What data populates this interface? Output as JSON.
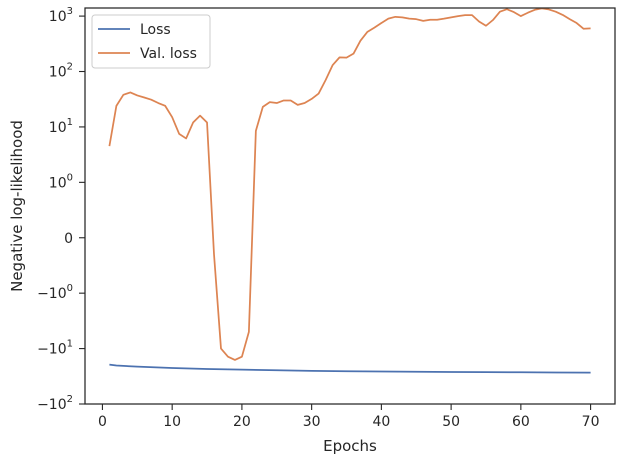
{
  "chart_data": {
    "type": "line",
    "title": "",
    "xlabel": "Epochs",
    "ylabel": "Negative log-likelihood",
    "y_scale": "symlog",
    "xlim": [
      -2.5,
      73.5
    ],
    "ylim": [
      -100,
      1400
    ],
    "x_ticks": [
      0,
      10,
      20,
      30,
      40,
      50,
      60,
      70
    ],
    "y_ticks": [
      {
        "value": 1000,
        "base": "10",
        "exp": "3"
      },
      {
        "value": 100,
        "base": "10",
        "exp": "2"
      },
      {
        "value": 10,
        "base": "10",
        "exp": "1"
      },
      {
        "value": 1,
        "base": "10",
        "exp": "0"
      },
      {
        "value": 0,
        "base": "0",
        "exp": ""
      },
      {
        "value": -1,
        "base": "−10",
        "exp": "0"
      },
      {
        "value": -10,
        "base": "−10",
        "exp": "1"
      },
      {
        "value": -100,
        "base": "−10",
        "exp": "2"
      }
    ],
    "grid": false,
    "legend_position": "top-left",
    "series": [
      {
        "name": "Loss",
        "color": "#4c72b0",
        "x": [
          1,
          2,
          5,
          10,
          15,
          20,
          25,
          30,
          35,
          40,
          45,
          50,
          55,
          60,
          65,
          70
        ],
        "y": [
          -19.5,
          -20.2,
          -21.2,
          -22.4,
          -23.3,
          -24.0,
          -24.6,
          -25.2,
          -25.6,
          -25.9,
          -26.2,
          -26.4,
          -26.6,
          -26.8,
          -27.0,
          -27.2
        ]
      },
      {
        "name": "Val. loss",
        "color": "#dd8452",
        "x": [
          1,
          2,
          3,
          4,
          5,
          6,
          7,
          8,
          9,
          10,
          11,
          12,
          13,
          14,
          15,
          16,
          17,
          18,
          19,
          20,
          21,
          22,
          23,
          24,
          25,
          26,
          27,
          28,
          29,
          30,
          31,
          32,
          33,
          34,
          35,
          36,
          37,
          38,
          39,
          40,
          41,
          42,
          43,
          44,
          45,
          46,
          47,
          48,
          49,
          50,
          51,
          52,
          53,
          54,
          55,
          56,
          57,
          58,
          59,
          60,
          61,
          62,
          63,
          64,
          65,
          66,
          67,
          68,
          69,
          70
        ],
        "y": [
          4.5,
          24,
          38,
          42,
          37,
          34,
          31,
          27,
          24,
          15,
          7.5,
          6.2,
          12,
          16,
          12,
          -0.3,
          -10,
          -14,
          -16,
          -14,
          -5,
          8.5,
          23,
          28,
          27,
          30,
          30,
          25,
          27,
          32,
          40,
          70,
          130,
          180,
          178,
          210,
          360,
          520,
          620,
          750,
          900,
          970,
          950,
          900,
          880,
          820,
          860,
          860,
          900,
          950,
          1000,
          1040,
          1040,
          800,
          670,
          850,
          1200,
          1330,
          1180,
          1000,
          1150,
          1300,
          1380,
          1320,
          1200,
          1050,
          880,
          750,
          590,
          600
        ]
      }
    ]
  }
}
